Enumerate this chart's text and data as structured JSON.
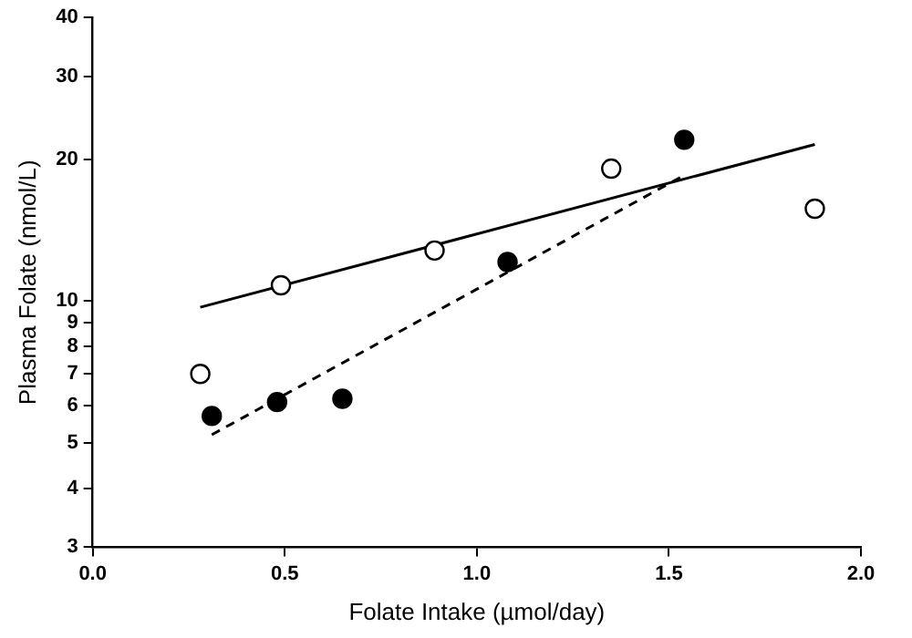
{
  "chart_data": {
    "type": "scatter",
    "xlabel": "Folate Intake (µmol/day)",
    "ylabel": "Plasma Folate (nmol/L)",
    "xlim": [
      0.0,
      2.0
    ],
    "xticks": [
      {
        "value": 0,
        "label": "0.0"
      },
      {
        "value": 0.5,
        "label": "0.5"
      },
      {
        "value": 1,
        "label": "1.0"
      },
      {
        "value": 1.5,
        "label": "1.5"
      },
      {
        "value": 2,
        "label": "2.0"
      }
    ],
    "ylim": [
      3,
      40
    ],
    "yticks": [
      3,
      4,
      5,
      6,
      7,
      8,
      9,
      10,
      20,
      30,
      40
    ],
    "log": "y",
    "grid": false,
    "legend": false,
    "series": [
      {
        "type": "scatter",
        "marker": "circle",
        "color": "#ffffff",
        "x": [
          0.28,
          0.49,
          0.89,
          1.35,
          1.88
        ],
        "values": [
          7.0,
          10.8,
          12.8,
          19.1,
          15.7
        ]
      },
      {
        "type": "scatter",
        "marker": "circle",
        "color": "#000000",
        "x": [
          0.31,
          0.48,
          0.65,
          1.08,
          1.54
        ],
        "values": [
          5.7,
          6.1,
          6.2,
          12.1,
          22.0
        ]
      },
      {
        "type": "line",
        "marker": "none",
        "color": "#000000",
        "line_style": "solid",
        "x": [
          0.28,
          1.88
        ],
        "values": [
          9.7,
          21.5
        ]
      },
      {
        "type": "line",
        "marker": "none",
        "color": "#000000",
        "line_style": "dashed",
        "x": [
          0.31,
          1.54
        ],
        "values": [
          5.2,
          18.5
        ]
      }
    ]
  }
}
